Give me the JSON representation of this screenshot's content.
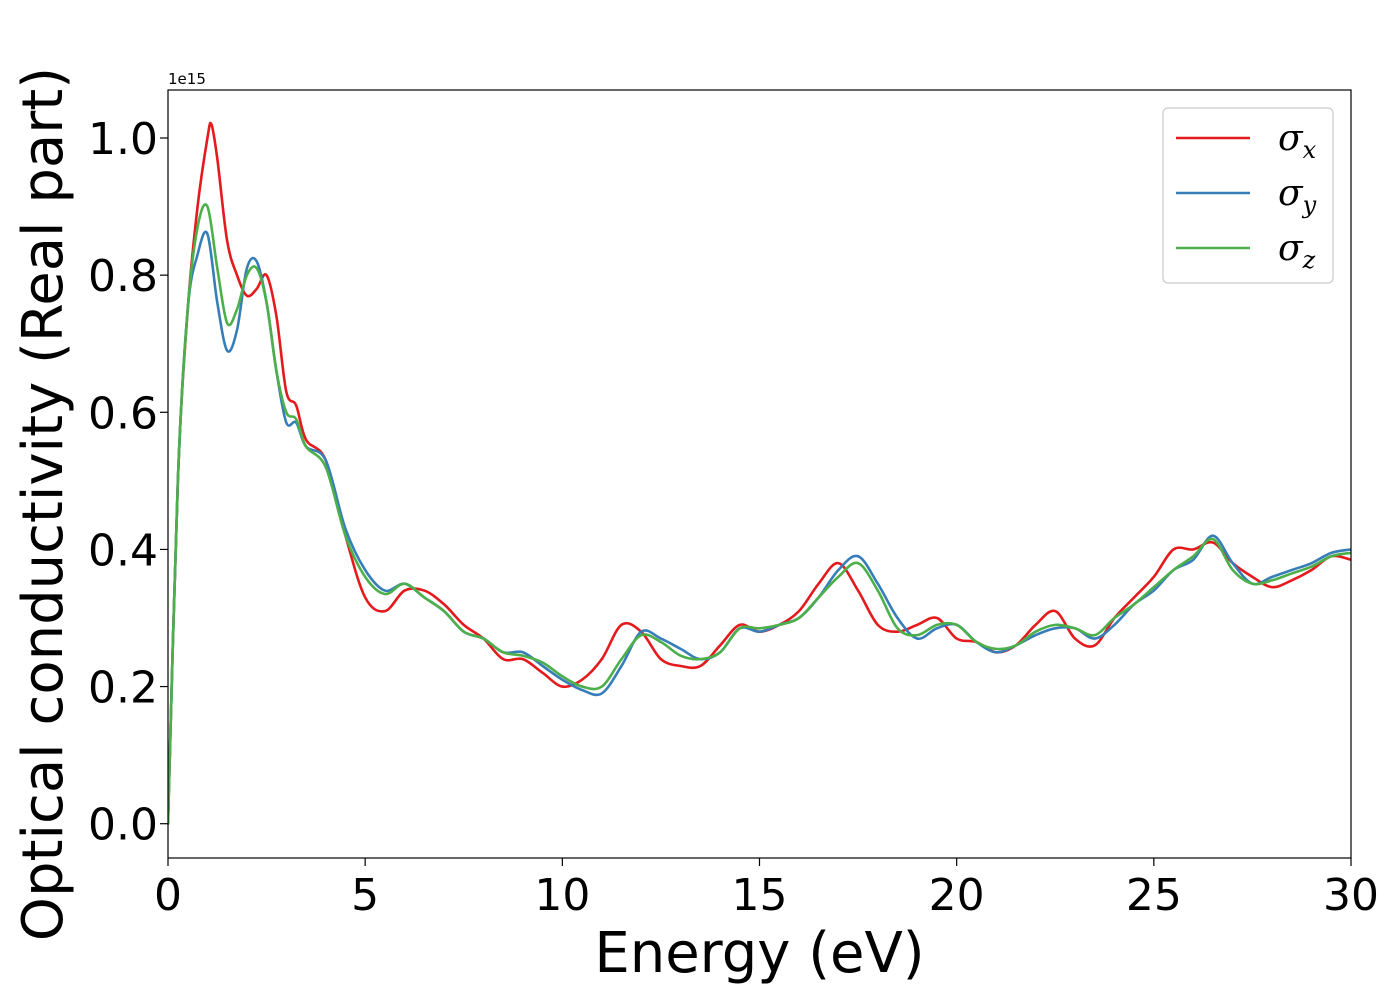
{
  "chart_data": {
    "type": "line",
    "xlabel": "Energy (eV)",
    "ylabel": "Optical conductivity (Real part)",
    "y_offset_text": "1e15",
    "xlim": [
      0,
      30
    ],
    "ylim": [
      -0.05,
      1.07
    ],
    "xticks": [
      0,
      5,
      10,
      15,
      20,
      25,
      30
    ],
    "xtick_labels": [
      "0",
      "5",
      "10",
      "15",
      "20",
      "25",
      "30"
    ],
    "yticks": [
      0.0,
      0.2,
      0.4,
      0.6,
      0.8,
      1.0
    ],
    "ytick_labels": [
      "0.0",
      "0.2",
      "0.4",
      "0.6",
      "0.8",
      "1.0"
    ],
    "grid": false,
    "legend_position": "top-right",
    "series": [
      {
        "name": "σx",
        "symbol": "σ",
        "subscript": "x",
        "color": "#e41a1c",
        "x": [
          0,
          0.25,
          0.5,
          0.75,
          1.0,
          1.1,
          1.25,
          1.5,
          1.75,
          2.0,
          2.25,
          2.5,
          2.75,
          3.0,
          3.25,
          3.5,
          4.0,
          4.5,
          5.0,
          5.5,
          6.0,
          6.5,
          7.0,
          7.5,
          8.0,
          8.5,
          9.0,
          9.5,
          10.0,
          10.5,
          11.0,
          11.5,
          12.0,
          12.5,
          13.0,
          13.5,
          14.0,
          14.5,
          15.0,
          15.5,
          16.0,
          16.5,
          17.0,
          17.5,
          18.0,
          18.5,
          19.0,
          19.5,
          20.0,
          20.5,
          21.0,
          21.5,
          22.0,
          22.5,
          23.0,
          23.5,
          24.0,
          24.5,
          25.0,
          25.5,
          26.0,
          26.5,
          27.0,
          27.5,
          28.0,
          28.5,
          29.0,
          29.5,
          30.0
        ],
        "y": [
          0.0,
          0.5,
          0.75,
          0.9,
          1.0,
          1.02,
          0.97,
          0.85,
          0.8,
          0.77,
          0.78,
          0.8,
          0.74,
          0.63,
          0.61,
          0.56,
          0.53,
          0.42,
          0.33,
          0.31,
          0.34,
          0.34,
          0.32,
          0.29,
          0.27,
          0.24,
          0.24,
          0.22,
          0.2,
          0.21,
          0.24,
          0.29,
          0.28,
          0.24,
          0.23,
          0.23,
          0.26,
          0.29,
          0.28,
          0.29,
          0.31,
          0.35,
          0.38,
          0.34,
          0.29,
          0.28,
          0.29,
          0.3,
          0.27,
          0.265,
          0.25,
          0.26,
          0.29,
          0.31,
          0.27,
          0.26,
          0.3,
          0.33,
          0.36,
          0.4,
          0.4,
          0.41,
          0.38,
          0.36,
          0.345,
          0.355,
          0.37,
          0.39,
          0.385
        ]
      },
      {
        "name": "σy",
        "symbol": "σ",
        "subscript": "y",
        "color": "#377eb8",
        "x": [
          0,
          0.25,
          0.5,
          0.75,
          1.0,
          1.25,
          1.5,
          1.75,
          2.0,
          2.25,
          2.5,
          2.75,
          3.0,
          3.25,
          3.5,
          4.0,
          4.5,
          5.0,
          5.5,
          6.0,
          6.5,
          7.0,
          7.5,
          8.0,
          8.5,
          9.0,
          9.5,
          10.0,
          10.5,
          11.0,
          11.5,
          12.0,
          12.5,
          13.0,
          13.5,
          14.0,
          14.5,
          15.0,
          15.5,
          16.0,
          16.5,
          17.0,
          17.5,
          18.0,
          18.5,
          19.0,
          19.5,
          20.0,
          20.5,
          21.0,
          21.5,
          22.0,
          22.5,
          23.0,
          23.5,
          24.0,
          24.5,
          25.0,
          25.5,
          26.0,
          26.5,
          27.0,
          27.5,
          28.0,
          28.5,
          29.0,
          29.5,
          30.0
        ],
        "y": [
          0.0,
          0.5,
          0.75,
          0.83,
          0.86,
          0.76,
          0.69,
          0.72,
          0.81,
          0.82,
          0.76,
          0.66,
          0.585,
          0.585,
          0.55,
          0.53,
          0.43,
          0.37,
          0.34,
          0.35,
          0.33,
          0.31,
          0.28,
          0.27,
          0.25,
          0.25,
          0.23,
          0.21,
          0.195,
          0.19,
          0.23,
          0.28,
          0.27,
          0.255,
          0.24,
          0.25,
          0.285,
          0.28,
          0.29,
          0.3,
          0.33,
          0.37,
          0.39,
          0.35,
          0.3,
          0.27,
          0.285,
          0.29,
          0.265,
          0.25,
          0.26,
          0.275,
          0.285,
          0.285,
          0.27,
          0.29,
          0.32,
          0.34,
          0.37,
          0.385,
          0.42,
          0.38,
          0.35,
          0.36,
          0.37,
          0.38,
          0.395,
          0.4
        ]
      },
      {
        "name": "σz",
        "symbol": "σ",
        "subscript": "z",
        "color": "#4daf4a",
        "x": [
          0,
          0.25,
          0.5,
          0.75,
          1.0,
          1.25,
          1.5,
          1.75,
          2.0,
          2.25,
          2.5,
          2.75,
          3.0,
          3.25,
          3.5,
          4.0,
          4.5,
          5.0,
          5.5,
          6.0,
          6.5,
          7.0,
          7.5,
          8.0,
          8.5,
          9.0,
          9.5,
          10.0,
          10.5,
          11.0,
          11.5,
          12.0,
          12.5,
          13.0,
          13.5,
          14.0,
          14.5,
          15.0,
          15.5,
          16.0,
          16.5,
          17.0,
          17.5,
          18.0,
          18.5,
          19.0,
          19.5,
          20.0,
          20.5,
          21.0,
          21.5,
          22.0,
          22.5,
          23.0,
          23.5,
          24.0,
          24.5,
          25.0,
          25.5,
          26.0,
          26.5,
          27.0,
          27.5,
          28.0,
          28.5,
          29.0,
          29.5,
          30.0
        ],
        "y": [
          0.0,
          0.5,
          0.75,
          0.87,
          0.9,
          0.81,
          0.73,
          0.75,
          0.8,
          0.81,
          0.76,
          0.66,
          0.6,
          0.59,
          0.55,
          0.52,
          0.42,
          0.36,
          0.335,
          0.35,
          0.33,
          0.31,
          0.28,
          0.27,
          0.25,
          0.245,
          0.235,
          0.215,
          0.2,
          0.2,
          0.24,
          0.275,
          0.265,
          0.245,
          0.24,
          0.25,
          0.285,
          0.285,
          0.29,
          0.3,
          0.33,
          0.36,
          0.38,
          0.34,
          0.285,
          0.275,
          0.29,
          0.29,
          0.265,
          0.255,
          0.26,
          0.28,
          0.29,
          0.285,
          0.275,
          0.3,
          0.32,
          0.345,
          0.37,
          0.39,
          0.415,
          0.37,
          0.35,
          0.355,
          0.365,
          0.375,
          0.39,
          0.395
        ]
      }
    ]
  }
}
